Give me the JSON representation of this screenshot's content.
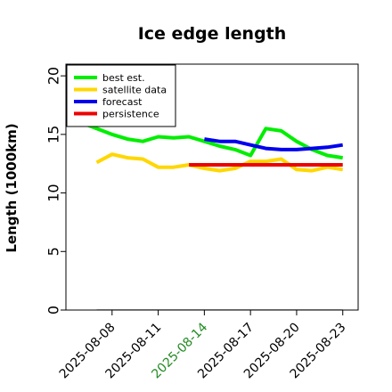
{
  "chart_data": {
    "type": "line",
    "title": "Ice edge length",
    "ylabel": "Length (1000km)",
    "xlabel": "",
    "ylim": [
      0,
      21
    ],
    "xlim": [
      "2025-08-05",
      "2025-08-24"
    ],
    "yticks": [
      0,
      5,
      10,
      15,
      20
    ],
    "xticks": [
      {
        "label": "2025-08-08",
        "color": "#000000"
      },
      {
        "label": "2025-08-11",
        "color": "#000000"
      },
      {
        "label": "2025-08-14",
        "color": "#228B22"
      },
      {
        "label": "2025-08-17",
        "color": "#000000"
      },
      {
        "label": "2025-08-20",
        "color": "#000000"
      },
      {
        "label": "2025-08-23",
        "color": "#000000"
      }
    ],
    "grid": false,
    "legend_position": "top-left",
    "series": [
      {
        "name": "best est.",
        "color": "#00ee00",
        "x": [
          "2025-08-05",
          "2025-08-06",
          "2025-08-07",
          "2025-08-08",
          "2025-08-09",
          "2025-08-10",
          "2025-08-11",
          "2025-08-12",
          "2025-08-13",
          "2025-08-14",
          "2025-08-15",
          "2025-08-16",
          "2025-08-17",
          "2025-08-18",
          "2025-08-19",
          "2025-08-20",
          "2025-08-21",
          "2025-08-22",
          "2025-08-23"
        ],
        "y": [
          16.3,
          16.0,
          15.5,
          15.0,
          14.6,
          14.4,
          14.8,
          14.7,
          14.8,
          14.4,
          14.0,
          13.7,
          13.2,
          15.5,
          15.3,
          14.4,
          13.7,
          13.2,
          13.0
        ]
      },
      {
        "name": "satellite data",
        "color": "#ffd700",
        "x": [
          "2025-08-07",
          "2025-08-08",
          "2025-08-09",
          "2025-08-10",
          "2025-08-11",
          "2025-08-12",
          "2025-08-13",
          "2025-08-14",
          "2025-08-15",
          "2025-08-16",
          "2025-08-17",
          "2025-08-18",
          "2025-08-19",
          "2025-08-20",
          "2025-08-21",
          "2025-08-22",
          "2025-08-23"
        ],
        "y": [
          12.6,
          13.3,
          13.0,
          12.9,
          12.2,
          12.2,
          12.4,
          12.1,
          11.9,
          12.1,
          12.7,
          12.7,
          12.9,
          12.0,
          11.9,
          12.2,
          12.0
        ]
      },
      {
        "name": "forecast",
        "color": "#0000ee",
        "x": [
          "2025-08-14",
          "2025-08-15",
          "2025-08-16",
          "2025-08-17",
          "2025-08-18",
          "2025-08-19",
          "2025-08-20",
          "2025-08-21",
          "2025-08-22",
          "2025-08-23"
        ],
        "y": [
          14.6,
          14.4,
          14.4,
          14.1,
          13.8,
          13.7,
          13.7,
          13.8,
          13.9,
          14.1
        ]
      },
      {
        "name": "persistence",
        "color": "#ee0000",
        "x": [
          "2025-08-13",
          "2025-08-23"
        ],
        "y": [
          12.4,
          12.4
        ]
      },
      {
        "name": "",
        "color": "#777777",
        "x": [
          "2025-08-07",
          "2025-08-23"
        ],
        "y": [
          0,
          0
        ]
      }
    ]
  }
}
